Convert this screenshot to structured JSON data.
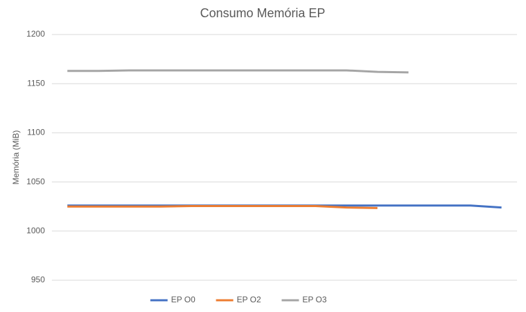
{
  "chart_data": {
    "type": "line",
    "title": "Consumo Memória EP",
    "y_label": "Memória (MiB)",
    "categories": [
      null,
      null,
      null,
      null,
      null,
      null,
      null,
      null,
      null,
      null,
      null,
      null,
      null,
      null,
      null
    ],
    "series": [
      {
        "name": "EP O0",
        "color": "#4472c4",
        "values": [
          1026,
          1026,
          1026,
          1026,
          1026,
          1026,
          1026,
          1026,
          1026,
          1026,
          1026,
          1026,
          1026,
          1026,
          1024
        ]
      },
      {
        "name": "EP O2",
        "color": "#ed7d31",
        "values": [
          1025,
          1025,
          1025,
          1025,
          1025.5,
          1025.5,
          1025.5,
          1025.5,
          1025.5,
          1024,
          1023.5,
          null,
          null,
          null,
          null
        ]
      },
      {
        "name": "EP O3",
        "color": "#a5a5a5",
        "values": [
          1163,
          1163,
          1163.5,
          1163.5,
          1163.5,
          1163.5,
          1163.5,
          1163.5,
          1163.5,
          1163.5,
          1162,
          1161.5,
          null,
          null,
          null
        ]
      }
    ],
    "ylim": [
      950,
      1200
    ],
    "yticks": [
      950,
      1000,
      1050,
      1100,
      1150,
      1200
    ],
    "grid": true,
    "legend": "bottom"
  }
}
